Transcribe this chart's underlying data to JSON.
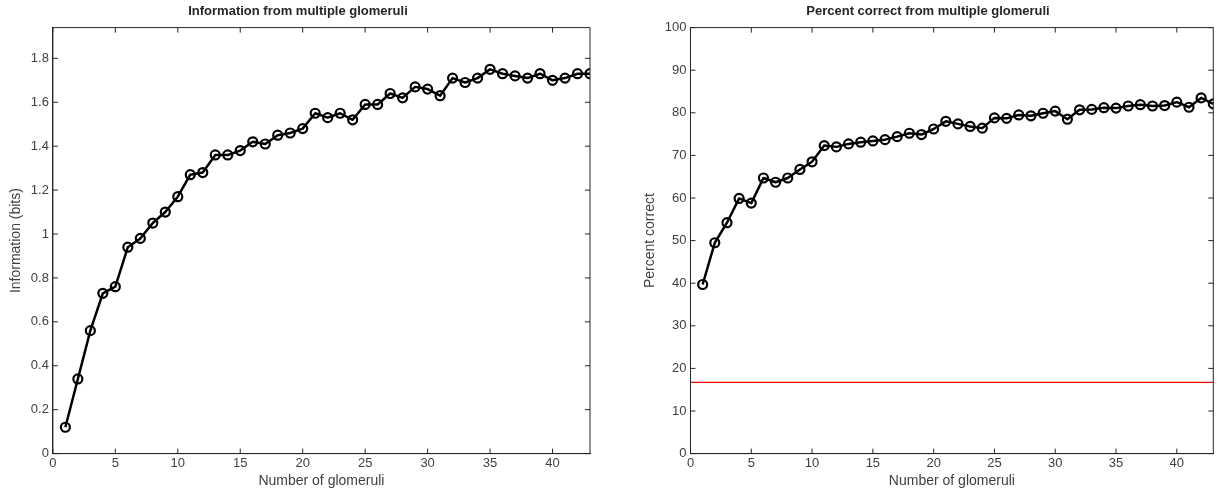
{
  "chart_data": [
    {
      "type": "line",
      "title": "Information from multiple glomeruli",
      "xlabel": "Number of glomeruli",
      "ylabel": "Information (bits)",
      "x": [
        1,
        2,
        3,
        4,
        5,
        6,
        7,
        8,
        9,
        10,
        11,
        12,
        13,
        14,
        15,
        16,
        17,
        18,
        19,
        20,
        21,
        22,
        23,
        24,
        25,
        26,
        27,
        28,
        29,
        30,
        31,
        32,
        33,
        34,
        35,
        36,
        37,
        38,
        39,
        40,
        41,
        42,
        43
      ],
      "series": [
        {
          "color": "#000000",
          "values": [
            0.12,
            0.34,
            0.56,
            0.73,
            0.76,
            0.94,
            0.98,
            1.05,
            1.1,
            1.17,
            1.27,
            1.28,
            1.36,
            1.36,
            1.38,
            1.42,
            1.41,
            1.45,
            1.46,
            1.48,
            1.55,
            1.53,
            1.55,
            1.52,
            1.59,
            1.59,
            1.64,
            1.62,
            1.67,
            1.66,
            1.63,
            1.71,
            1.69,
            1.71,
            1.75,
            1.73,
            1.72,
            1.71,
            1.73,
            1.7,
            1.71,
            1.73,
            1.73
          ]
        }
      ],
      "xlim": [
        0,
        43
      ],
      "xticks": [
        0,
        5,
        10,
        15,
        20,
        25,
        30,
        35,
        40
      ],
      "ylim": [
        0,
        1.94
      ],
      "yticks": [
        0,
        0.2,
        0.4,
        0.6,
        0.8,
        1,
        1.2,
        1.4,
        1.6,
        1.8
      ],
      "marker": "circle",
      "line_style": "solid",
      "grid": false,
      "legend": false
    },
    {
      "type": "line",
      "title": "Percent correct from multiple glomeruli",
      "xlabel": "Number of glomeruli",
      "ylabel": "Percent correct",
      "x": [
        1,
        2,
        3,
        4,
        5,
        6,
        7,
        8,
        9,
        10,
        11,
        12,
        13,
        14,
        15,
        16,
        17,
        18,
        19,
        20,
        21,
        22,
        23,
        24,
        25,
        26,
        27,
        28,
        29,
        30,
        31,
        32,
        33,
        34,
        35,
        36,
        37,
        38,
        39,
        40,
        41,
        42,
        43
      ],
      "series": [
        {
          "color": "#000000",
          "values": [
            39.7,
            49.5,
            54.2,
            59.9,
            58.8,
            64.7,
            63.7,
            64.7,
            66.7,
            68.5,
            72.3,
            72.0,
            72.7,
            73.1,
            73.4,
            73.7,
            74.4,
            75.2,
            74.9,
            76.2,
            78.0,
            77.4,
            76.8,
            76.4,
            78.8,
            78.7,
            79.5,
            79.3,
            79.9,
            80.4,
            78.5,
            80.7,
            80.8,
            81.2,
            81.1,
            81.6,
            81.9,
            81.6,
            81.7,
            82.5,
            81.3,
            83.5,
            82.1
          ]
        }
      ],
      "xlim": [
        0,
        43
      ],
      "xticks": [
        0,
        5,
        10,
        15,
        20,
        25,
        30,
        35,
        40
      ],
      "ylim": [
        0,
        100
      ],
      "yticks": [
        0,
        10,
        20,
        30,
        40,
        50,
        60,
        70,
        80,
        90,
        100
      ],
      "ref_lines": [
        {
          "axis": "y",
          "value": 16.7,
          "color": "#ff0000"
        }
      ],
      "marker": "circle",
      "line_style": "solid",
      "grid": false,
      "legend": false
    }
  ]
}
